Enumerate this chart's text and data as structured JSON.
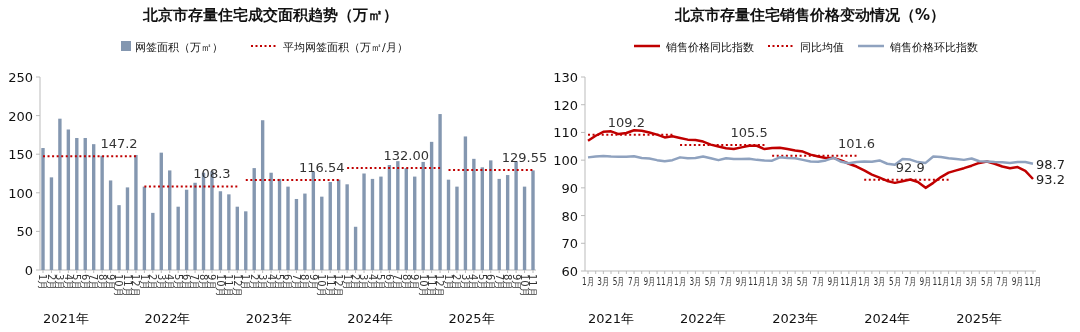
{
  "chart_data": [
    {
      "type": "bar",
      "title": "北京市存量住宅成交面积趋势（万㎡）",
      "legend": "top",
      "categories": [
        "1月",
        "2月",
        "3月",
        "4月",
        "5月",
        "6月",
        "7月",
        "8月",
        "9月",
        "10月",
        "11月",
        "12月",
        "1月",
        "2月",
        "3月",
        "4月",
        "5月",
        "6月",
        "7月",
        "8月",
        "9月",
        "10月",
        "11月",
        "12月",
        "1月",
        "2月",
        "3月",
        "4月",
        "5月",
        "6月",
        "7月",
        "8月",
        "9月",
        "10月",
        "11月",
        "12月",
        "1月",
        "2月",
        "3月",
        "4月",
        "5月",
        "6月",
        "7月",
        "8月",
        "9月",
        "10月",
        "11月",
        "12月",
        "1月",
        "2月",
        "3月",
        "4月",
        "5月",
        "6月",
        "7月",
        "8月",
        "9月",
        "10月",
        "11月"
      ],
      "series": [
        {
          "name": "网签面积（万㎡）",
          "color": "#8497b0",
          "values": [
            158,
            120,
            196,
            182,
            171,
            171,
            163,
            148,
            116,
            84,
            107,
            149,
            108,
            74,
            152,
            129,
            82,
            104,
            113,
            126,
            128,
            102,
            98,
            82,
            76,
            132,
            194,
            126,
            118,
            108,
            92,
            99,
            127,
            95,
            114,
            117,
            111,
            56,
            125,
            118,
            121,
            136,
            141,
            132,
            121,
            140,
            166,
            202,
            117,
            108,
            173,
            144,
            133,
            142,
            118,
            123,
            141,
            108,
            129
          ]
        },
        {
          "name": "平均网签面积（万㎡/月）",
          "type": "line",
          "line_style": "dotted",
          "color": "#c00000",
          "values": [
            147.2,
            147.2,
            147.2,
            147.2,
            147.2,
            147.2,
            147.2,
            147.2,
            147.2,
            147.2,
            147.2,
            147.2,
            108.3,
            108.3,
            108.3,
            108.3,
            108.3,
            108.3,
            108.3,
            108.3,
            108.3,
            108.3,
            108.3,
            108.3,
            116.54,
            116.54,
            116.54,
            116.54,
            116.54,
            116.54,
            116.54,
            116.54,
            116.54,
            116.54,
            116.54,
            116.54,
            132.0,
            132.0,
            132.0,
            132.0,
            132.0,
            132.0,
            132.0,
            132.0,
            132.0,
            132.0,
            132.0,
            132.0,
            129.55,
            129.55,
            129.55,
            129.55,
            129.55,
            129.55,
            129.55,
            129.55,
            129.55,
            129.55,
            129.55
          ],
          "value_labels": [
            null,
            null,
            null,
            null,
            null,
            null,
            null,
            null,
            null,
            "147.2",
            null,
            null,
            null,
            null,
            null,
            null,
            null,
            null,
            null,
            null,
            "108.3",
            null,
            null,
            null,
            null,
            null,
            null,
            null,
            null,
            null,
            null,
            null,
            null,
            "116.54",
            null,
            null,
            null,
            null,
            null,
            null,
            null,
            null,
            null,
            "132.00",
            null,
            null,
            null,
            null,
            null,
            null,
            null,
            null,
            null,
            null,
            null,
            null,
            null,
            "129.55",
            null
          ]
        }
      ],
      "ylim": [
        0,
        250
      ],
      "yticks": [
        0,
        50,
        100,
        150,
        200,
        250
      ],
      "annotations": [
        "2021年",
        "2022年",
        "2023年",
        "2024年",
        "2025年"
      ]
    },
    {
      "type": "line",
      "title": "北京市存量住宅销售价格变动情况（%）",
      "legend": "top",
      "categories": [
        "1月",
        null,
        "3月",
        null,
        "5月",
        null,
        "7月",
        null,
        "9月",
        null,
        "11月",
        null,
        "1月",
        null,
        "3月",
        null,
        "5月",
        null,
        "7月",
        null,
        "9月",
        null,
        "11月",
        null,
        "1月",
        null,
        "3月",
        null,
        "5月",
        null,
        "7月",
        null,
        "9月",
        null,
        "11月",
        null,
        "1月",
        null,
        "3月",
        null,
        "5月",
        null,
        "7月",
        null,
        "9月",
        null,
        "11月",
        null,
        "1月",
        null,
        "3月",
        null,
        "5月",
        null,
        "7月",
        null,
        "9月",
        null,
        "11月"
      ],
      "series": [
        {
          "name": "销售价格同比指数",
          "color": "#c00000",
          "values": [
            107.0,
            108.8,
            110.2,
            110.4,
            109.4,
            109.8,
            110.8,
            110.6,
            110.0,
            109.2,
            108.2,
            108.6,
            108.0,
            107.4,
            107.3,
            106.7,
            105.6,
            104.9,
            104.3,
            104.0,
            104.6,
            105.2,
            105.2,
            104.0,
            104.4,
            104.5,
            104.0,
            103.5,
            103.1,
            102.0,
            101.3,
            100.8,
            100.8,
            99.9,
            98.7,
            97.7,
            96.3,
            94.8,
            93.7,
            92.5,
            91.8,
            92.4,
            93.0,
            92.1,
            90.0,
            91.8,
            93.9,
            95.5,
            96.3,
            97.1,
            98.0,
            99.0,
            99.5,
            98.7,
            97.7,
            97.1,
            97.5,
            96.1,
            93.2
          ],
          "value_labels": [
            null,
            null,
            null,
            null,
            null,
            null,
            null,
            null,
            null,
            null,
            null,
            null,
            null,
            null,
            null,
            null,
            null,
            null,
            null,
            null,
            null,
            null,
            null,
            null,
            null,
            null,
            null,
            null,
            null,
            null,
            null,
            null,
            null,
            null,
            null,
            null,
            null,
            null,
            null,
            null,
            null,
            null,
            null,
            null,
            null,
            null,
            null,
            null,
            null,
            null,
            null,
            null,
            null,
            null,
            null,
            null,
            null,
            null,
            "93.2"
          ]
        },
        {
          "name": "同比均值",
          "line_style": "dotted",
          "color": "#c00000",
          "values": [
            109.2,
            109.2,
            109.2,
            109.2,
            109.2,
            109.2,
            109.2,
            109.2,
            109.2,
            109.2,
            109.2,
            109.2,
            105.5,
            105.5,
            105.5,
            105.5,
            105.5,
            105.5,
            105.5,
            105.5,
            105.5,
            105.5,
            105.5,
            105.5,
            101.6,
            101.6,
            101.6,
            101.6,
            101.6,
            101.6,
            101.6,
            101.6,
            101.6,
            101.6,
            101.6,
            101.6,
            92.9,
            92.9,
            92.9,
            92.9,
            92.9,
            92.9,
            92.9,
            92.9,
            92.9,
            92.9,
            92.9,
            92.9,
            null,
            null,
            null,
            null,
            null,
            null,
            null,
            null,
            null,
            null,
            null
          ],
          "value_labels": [
            null,
            null,
            null,
            null,
            null,
            "109.2",
            null,
            null,
            null,
            null,
            null,
            null,
            null,
            null,
            null,
            null,
            null,
            null,
            null,
            null,
            null,
            "105.5",
            null,
            null,
            null,
            null,
            null,
            null,
            null,
            null,
            null,
            null,
            null,
            null,
            null,
            "101.6",
            null,
            null,
            null,
            null,
            null,
            null,
            "92.9",
            null,
            null,
            null,
            null,
            null,
            null,
            null,
            null,
            null,
            null,
            null,
            null,
            null,
            null,
            null,
            null
          ]
        },
        {
          "name": "销售价格环比指数",
          "color": "#8fa2bf",
          "values": [
            101.0,
            101.3,
            101.5,
            101.3,
            101.2,
            101.2,
            101.4,
            100.8,
            100.6,
            100.0,
            99.6,
            100.0,
            101.0,
            100.7,
            100.8,
            101.3,
            100.7,
            100.0,
            100.7,
            100.4,
            100.4,
            100.5,
            100.1,
            99.9,
            99.8,
            101.0,
            100.8,
            100.7,
            100.1,
            99.5,
            99.4,
            99.9,
            100.8,
            99.4,
            98.9,
            99.3,
            99.5,
            99.4,
            99.9,
            98.7,
            98.3,
            100.4,
            100.2,
            99.3,
            99.0,
            101.3,
            101.1,
            100.7,
            100.4,
            100.1,
            100.6,
            99.6,
            99.5,
            99.3,
            99.2,
            99.0,
            99.3,
            99.3,
            98.7
          ],
          "value_labels": [
            null,
            null,
            null,
            null,
            null,
            null,
            null,
            null,
            null,
            null,
            null,
            null,
            null,
            null,
            null,
            null,
            null,
            null,
            null,
            null,
            null,
            null,
            null,
            null,
            null,
            null,
            null,
            null,
            null,
            null,
            null,
            null,
            null,
            null,
            null,
            null,
            null,
            null,
            null,
            null,
            null,
            null,
            null,
            null,
            null,
            null,
            null,
            null,
            null,
            null,
            null,
            null,
            null,
            null,
            null,
            null,
            null,
            null,
            "98.7"
          ]
        }
      ],
      "ylim": [
        60,
        130
      ],
      "yticks": [
        60,
        70,
        80,
        90,
        100,
        110,
        120,
        130
      ],
      "annotations": [
        "2021年",
        "2022年",
        "2023年",
        "2024年",
        "2025年"
      ]
    }
  ]
}
